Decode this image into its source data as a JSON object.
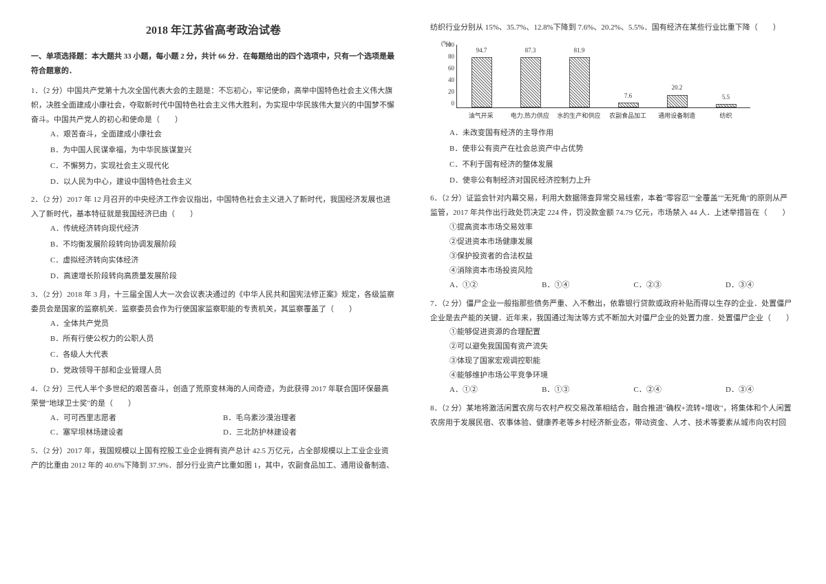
{
  "title": "2018 年江苏省高考政治试卷",
  "section_header": "一、单项选择题：本大题共 33 小题，每小题 2 分，共计 66 分．在每题给出的四个选项中，只有一个选项是最符合题意的．",
  "q1": {
    "text": "1．（2 分）中国共产党第十九次全国代表大会的主题是：不忘初心，牢记使命，高举中国特色社会主义伟大旗帜，决胜全面建成小康社会，夺取新时代中国特色社会主义伟大胜利，为实现中华民族伟大复兴的中国梦不懈奋斗。中国共产党人的初心和使命是（　　）",
    "a": "A．艰苦奋斗，全面建成小康社会",
    "b": "B．为中国人民谋幸福，为中华民族谋复兴",
    "c": "C．不懈努力，实现社会主义现代化",
    "d": "D．以人民为中心，建设中国特色社会主义"
  },
  "q2": {
    "text": "2．（2 分）2017 年 12 月召开的中央经济工作会议指出，中国特色社会主义进入了新时代，我国经济发展也进入了新时代，基本特征就是我国经济已由（　　）",
    "a": "A．传统经济转向现代经济",
    "b": "B．不均衡发展阶段转向协调发展阶段",
    "c": "C．虚拟经济转向实体经济",
    "d": "D．高速增长阶段转向高质量发展阶段"
  },
  "q3": {
    "text": "3．（2 分）2018 年 3 月，十三届全国人大一次会议表决通过的《中华人民共和国宪法修正案》规定，各级监察委员会是国家的监察机关．监察委员会作为行使国家监察职能的专责机关，其监察覆盖了（　　）",
    "a": "A．全体共产党员",
    "b": "B．所有行使公权力的公职人员",
    "c": "C．各级人大代表",
    "d": "D．党政领导干部和企业管理人员"
  },
  "q4": {
    "text": "4．（2 分）三代人半个多世纪的艰苦奋斗，创造了荒原变林海的人间奇迹，为此获得 2017 年联合国环保最高荣誉\"地球卫士奖\"的是（　　）",
    "a": "A．可可西里志愿者",
    "b": "B．毛乌素沙漠治理者",
    "c": "C．塞罕坝林场建设者",
    "d": "D．三北防护林建设者"
  },
  "q5": {
    "text": "5．（2 分）2017 年，我国规模以上国有控股工业企业拥有资产总计 42.5 万亿元，占全部规模以上工业企业资产的比重由 2012 年的 40.6%下降到 37.9%．部分行业资产比重如图 1，其中，农副食品加工、通用设备制造、",
    "text2": "纺织行业分别从 15%、35.7%、12.8%下降到 7.6%、20.2%、5.5%．国有经济在某些行业比重下降（　　）"
  },
  "chart": {
    "type": "bar",
    "y_unit": "(%)",
    "y_ticks": [
      "100",
      "80",
      "60",
      "40",
      "20",
      "0"
    ],
    "categories": [
      "油气开采",
      "电力.热力供应",
      "水的生产和供应",
      "农副食品加工",
      "通用设备制造",
      "纺织"
    ],
    "values": [
      94.7,
      87.3,
      81.9,
      7.6,
      20.2,
      5.5
    ],
    "labels": [
      "94.7",
      "87.3",
      "81.9",
      "7.6",
      "20.2",
      "5.5"
    ],
    "bar_pattern": "hatched",
    "ylim_max": 100,
    "border_color": "#333333",
    "background_color": "#ffffff",
    "label_fontsize": 9
  },
  "q5_options": {
    "a": "A．未改变国有经济的主导作用",
    "b": "B．使非公有资产在社会总资产中占优势",
    "c": "C．不利于国有经济的整体发展",
    "d": "D．使非公有制经济对国民经济控制力上升"
  },
  "q6": {
    "text": "6．（2 分）证监会针对内幕交易，利用大数据筛查异常交易线索，本着\"零容忍\"\"全覆盖\"\"无死角\"的原则从严监管，2017 年共作出行政处罚决定 224 件，罚没款金额 74.79 亿元，市场禁入 44 人．上述举措旨在（　　）",
    "s1": "①提高资本市场交易效率",
    "s2": "②促进资本市场健康发展",
    "s3": "③保护投资者的合法权益",
    "s4": "④消除资本市场投资风险",
    "a": "A．①②",
    "b": "B．①④",
    "c": "C．②③",
    "d": "D．③④"
  },
  "q7": {
    "text": "7．（2 分）僵尸企业一般指那些债务严重、入不敷出，依靠银行贷款或政府补贴而得以生存的企业．处置僵尸企业是去产能的关键．近年来，我国通过淘汰等方式不断加大对僵尸企业的处置力度．处置僵尸企业（　　）",
    "s1": "①能够促进资源的合理配置",
    "s2": "②可以避免我国国有资产流失",
    "s3": "③体现了国家宏观调控职能",
    "s4": "④能够维护市场公平竞争环境",
    "a": "A．①②",
    "b": "B．①③",
    "c": "C．②④",
    "d": "D．③④"
  },
  "q8": {
    "text": "8．（2 分）某地将激活闲置农房与农村产权交易改革相结合，融合推进\"确权+流转+增收\"，将集体和个人闲置农房用于发展民宿、农事体验、健康养老等乡村经济新业态，带动资金、人才、技术等要素从城市向农村回"
  }
}
